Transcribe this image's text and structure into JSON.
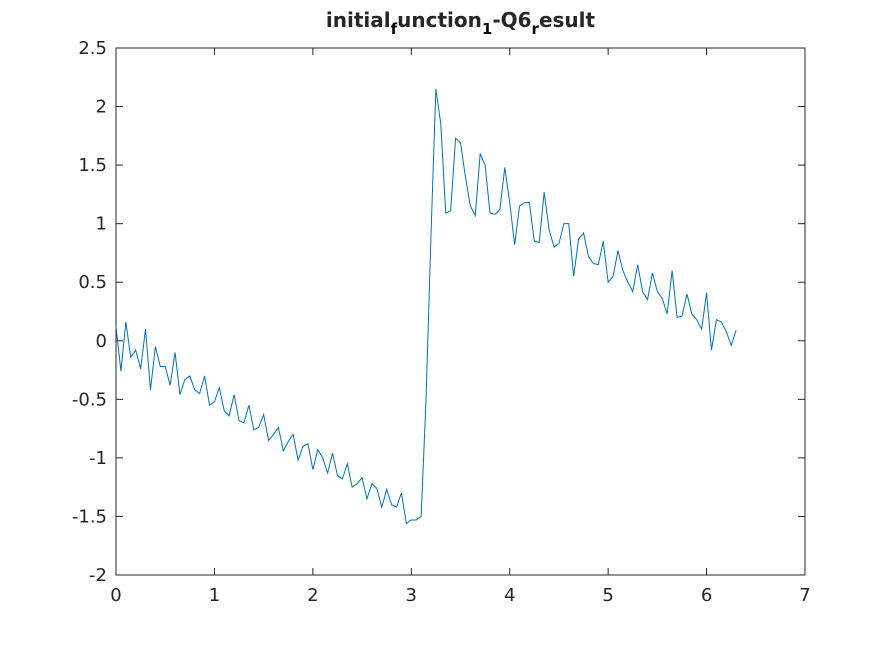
{
  "chart_data": {
    "type": "line",
    "title": "initial_function_1-Q6_result",
    "title_parts": [
      {
        "text": "initial",
        "sub": false
      },
      {
        "text": "f",
        "sub": true
      },
      {
        "text": "unction",
        "sub": false
      },
      {
        "text": "1",
        "sub": true
      },
      {
        "text": "-Q6",
        "sub": false
      },
      {
        "text": "r",
        "sub": true
      },
      {
        "text": "esult",
        "sub": false
      }
    ],
    "xlabel": "",
    "ylabel": "",
    "xlim": [
      0,
      7
    ],
    "ylim": [
      -2,
      2.5
    ],
    "xticks": [
      0,
      1,
      2,
      3,
      4,
      5,
      6,
      7
    ],
    "xtick_labels": [
      "0",
      "1",
      "2",
      "3",
      "4",
      "5",
      "6",
      "7"
    ],
    "yticks": [
      -2,
      -1.5,
      -1,
      -0.5,
      0,
      0.5,
      1,
      1.5,
      2,
      2.5
    ],
    "ytick_labels": [
      "-2",
      "-1.5",
      "-1",
      "-0.5",
      "0",
      "0.5",
      "1",
      "1.5",
      "2",
      "2.5"
    ],
    "grid": false,
    "line_color": "#0072bd",
    "axis_color": "#262626",
    "series": [
      {
        "name": "result",
        "x": [
          0.0,
          0.05,
          0.1,
          0.15,
          0.2,
          0.25,
          0.3,
          0.35,
          0.4,
          0.45,
          0.5,
          0.55,
          0.6,
          0.65,
          0.7,
          0.75,
          0.8,
          0.85,
          0.9,
          0.95,
          1.0,
          1.05,
          1.1,
          1.15,
          1.2,
          1.25,
          1.3,
          1.35,
          1.4,
          1.45,
          1.5,
          1.55,
          1.6,
          1.65,
          1.7,
          1.75,
          1.8,
          1.85,
          1.9,
          1.95,
          2.0,
          2.05,
          2.1,
          2.15,
          2.2,
          2.25,
          2.3,
          2.35,
          2.4,
          2.45,
          2.5,
          2.55,
          2.6,
          2.65,
          2.7,
          2.75,
          2.8,
          2.85,
          2.9,
          2.95,
          3.0,
          3.05,
          3.1,
          3.15,
          3.2,
          3.25,
          3.3,
          3.35,
          3.4,
          3.45,
          3.5,
          3.55,
          3.6,
          3.65,
          3.7,
          3.75,
          3.8,
          3.85,
          3.9,
          3.95,
          4.0,
          4.05,
          4.1,
          4.15,
          4.2,
          4.25,
          4.3,
          4.35,
          4.4,
          4.45,
          4.5,
          4.55,
          4.6,
          4.65,
          4.7,
          4.75,
          4.8,
          4.85,
          4.9,
          4.95,
          5.0,
          5.05,
          5.1,
          5.15,
          5.2,
          5.25,
          5.3,
          5.35,
          5.4,
          5.45,
          5.5,
          5.55,
          5.6,
          5.65,
          5.7,
          5.75,
          5.8,
          5.85,
          5.9,
          5.95,
          6.0,
          6.05,
          6.1,
          6.15,
          6.2,
          6.25,
          6.3
        ],
        "y": [
          0.12,
          -0.26,
          0.16,
          -0.14,
          -0.08,
          -0.24,
          0.1,
          -0.42,
          -0.05,
          -0.22,
          -0.22,
          -0.38,
          -0.1,
          -0.46,
          -0.33,
          -0.3,
          -0.42,
          -0.45,
          -0.3,
          -0.55,
          -0.52,
          -0.4,
          -0.6,
          -0.64,
          -0.46,
          -0.68,
          -0.7,
          -0.55,
          -0.76,
          -0.74,
          -0.63,
          -0.85,
          -0.8,
          -0.74,
          -0.94,
          -0.86,
          -0.8,
          -1.02,
          -0.9,
          -0.88,
          -1.1,
          -0.93,
          -1.0,
          -1.13,
          -0.96,
          -1.15,
          -1.18,
          -1.05,
          -1.25,
          -1.22,
          -1.17,
          -1.35,
          -1.22,
          -1.26,
          -1.42,
          -1.27,
          -1.4,
          -1.42,
          -1.3,
          -1.56,
          -1.53,
          -1.53,
          -1.5,
          -0.5,
          0.9,
          2.15,
          1.85,
          1.09,
          1.11,
          1.73,
          1.69,
          1.4,
          1.15,
          1.07,
          1.6,
          1.5,
          1.09,
          1.08,
          1.12,
          1.48,
          1.18,
          0.82,
          1.15,
          1.18,
          1.18,
          0.85,
          0.84,
          1.27,
          0.95,
          0.8,
          0.83,
          1.0,
          1.0,
          0.55,
          0.87,
          0.92,
          0.72,
          0.66,
          0.65,
          0.85,
          0.5,
          0.55,
          0.77,
          0.6,
          0.5,
          0.42,
          0.65,
          0.42,
          0.35,
          0.58,
          0.42,
          0.36,
          0.23,
          0.6,
          0.2,
          0.21,
          0.4,
          0.23,
          0.18,
          0.1,
          0.41,
          -0.08,
          0.18,
          0.16,
          0.08,
          -0.04,
          0.09
        ]
      }
    ]
  }
}
